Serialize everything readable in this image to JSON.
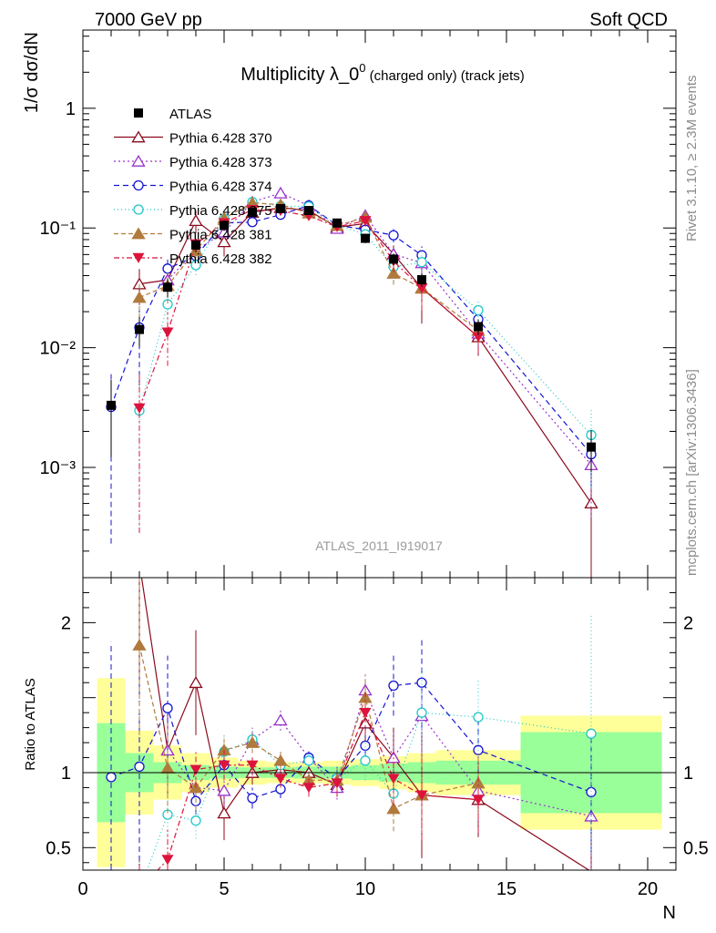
{
  "header": {
    "left": "7000 GeV pp",
    "right": "Soft QCD"
  },
  "side_text": {
    "rivet": "Rivet 3.1.10, ≥ 2.3M events",
    "source": "mcplots.cern.ch [arXiv:1306.3436]"
  },
  "chart_data": {
    "type": "scatter",
    "title_main": "Multiplicity λ_0",
    "title_sup": "0",
    "title_tail": " (charged only) (track jets)",
    "ylabel": "1/σ dσ/dN",
    "ylabel_ratio": "Ratio to ATLAS",
    "xlabel": "N",
    "xlim": [
      0,
      21
    ],
    "ylim_main": [
      0.00012,
      4.5
    ],
    "ylim_ratio": [
      0.35,
      2.3
    ],
    "yscale_main": "log",
    "x_ticks": [
      "0",
      "5",
      "10",
      "15",
      "20"
    ],
    "y_ticks_main": [
      "1",
      "10⁻¹",
      "10⁻²",
      "10⁻³"
    ],
    "y_ticks_ratio": [
      "2",
      "1",
      "0.5"
    ],
    "watermark": "ATLAS_2011_I919017",
    "legend_position": "top-left",
    "x": [
      1,
      2,
      3,
      4,
      5,
      6,
      7,
      8,
      9,
      10,
      11,
      12,
      14,
      18
    ],
    "data": {
      "name": "ATLAS",
      "values": [
        0.0033,
        0.0142,
        0.032,
        0.072,
        0.105,
        0.135,
        0.145,
        0.14,
        0.11,
        0.082,
        0.055,
        0.037,
        0.015,
        0.00148
      ],
      "band_bins": [
        0.5,
        1.5,
        2.5,
        3.5,
        4.5,
        5.5,
        6.5,
        7.5,
        8.5,
        9.5,
        10.5,
        11.5,
        12.5,
        15.5,
        20.5
      ],
      "band_stat": [
        0.33,
        0.13,
        0.07,
        0.05,
        0.04,
        0.035,
        0.035,
        0.04,
        0.04,
        0.05,
        0.06,
        0.07,
        0.08,
        0.27
      ],
      "band_total": [
        0.63,
        0.28,
        0.18,
        0.13,
        0.1,
        0.08,
        0.07,
        0.07,
        0.08,
        0.09,
        0.11,
        0.13,
        0.15,
        0.38
      ]
    },
    "series": [
      {
        "name": "Pythia 6.428 370",
        "color": "#8b0a1e",
        "marker": "tri-up-open",
        "dash": "",
        "ratio": [
          null,
          2.4,
          1.15,
          1.6,
          0.73,
          1.0,
          1.02,
          1.0,
          0.92,
          1.33,
          1.1,
          0.85,
          0.82,
          0.34
        ],
        "err": [
          0,
          0.8,
          0.3,
          0.35,
          0.18,
          0.08,
          0.06,
          0.06,
          0.08,
          0.15,
          0.2,
          0.42,
          0.25,
          0.3
        ]
      },
      {
        "name": "Pythia 6.428 373",
        "color": "#9a32cd",
        "marker": "tri-up-open",
        "dash": "2,3",
        "ratio": [
          null,
          null,
          1.15,
          0.9,
          0.88,
          1.22,
          1.35,
          1.1,
          0.9,
          1.55,
          1.1,
          1.38,
          0.88,
          0.71
        ],
        "err": [
          0,
          0,
          0.3,
          0.15,
          0.1,
          0.08,
          0.07,
          0.06,
          0.08,
          0.12,
          0.18,
          0.25,
          0.2,
          0.45
        ]
      },
      {
        "name": "Pythia 6.428 374",
        "color": "#1414d2",
        "marker": "circle-open",
        "dash": "6,4",
        "ratio": [
          0.97,
          1.04,
          1.43,
          0.81,
          1.05,
          0.83,
          0.89,
          1.1,
          0.96,
          1.18,
          1.58,
          1.6,
          1.15,
          0.87
        ],
        "err": [
          0.9,
          0.7,
          0.35,
          0.15,
          0.1,
          0.07,
          0.06,
          0.06,
          0.08,
          0.13,
          0.2,
          0.3,
          0.2,
          0.4
        ]
      },
      {
        "name": "Pythia 6.428 375",
        "color": "#1ec8c8",
        "marker": "circle-open",
        "dash": "1,3",
        "ratio": [
          null,
          0.21,
          0.72,
          0.68,
          1.14,
          1.22,
          1.05,
          1.08,
          0.96,
          1.08,
          0.86,
          1.4,
          1.37,
          1.26
        ],
        "err": [
          0,
          0.2,
          0.3,
          0.12,
          0.1,
          0.07,
          0.06,
          0.06,
          0.08,
          0.13,
          0.2,
          0.3,
          0.25,
          0.8
        ]
      },
      {
        "name": "Pythia 6.428 381",
        "color": "#b07a3c",
        "marker": "tri-up",
        "dash": "5,3",
        "ratio": [
          null,
          1.85,
          1.03,
          0.9,
          1.15,
          1.2,
          1.08,
          0.95,
          0.95,
          1.5,
          0.76,
          0.85,
          0.93,
          null
        ],
        "err": [
          0,
          0.6,
          0.3,
          0.15,
          0.1,
          0.07,
          0.06,
          0.06,
          0.08,
          0.15,
          0.15,
          0.25,
          0.2,
          0
        ]
      },
      {
        "name": "Pythia 6.428 382",
        "color": "#dc143c",
        "marker": "tri-down",
        "dash": "6,3,2,3",
        "ratio": [
          null,
          0.22,
          0.42,
          1.02,
          1.05,
          1.05,
          0.96,
          0.9,
          0.93,
          1.4,
          0.96,
          0.85,
          0.82,
          null
        ],
        "err": [
          0,
          0.2,
          0.2,
          0.12,
          0.1,
          0.07,
          0.06,
          0.06,
          0.08,
          0.15,
          0.18,
          0.3,
          0.22,
          0
        ]
      }
    ]
  }
}
